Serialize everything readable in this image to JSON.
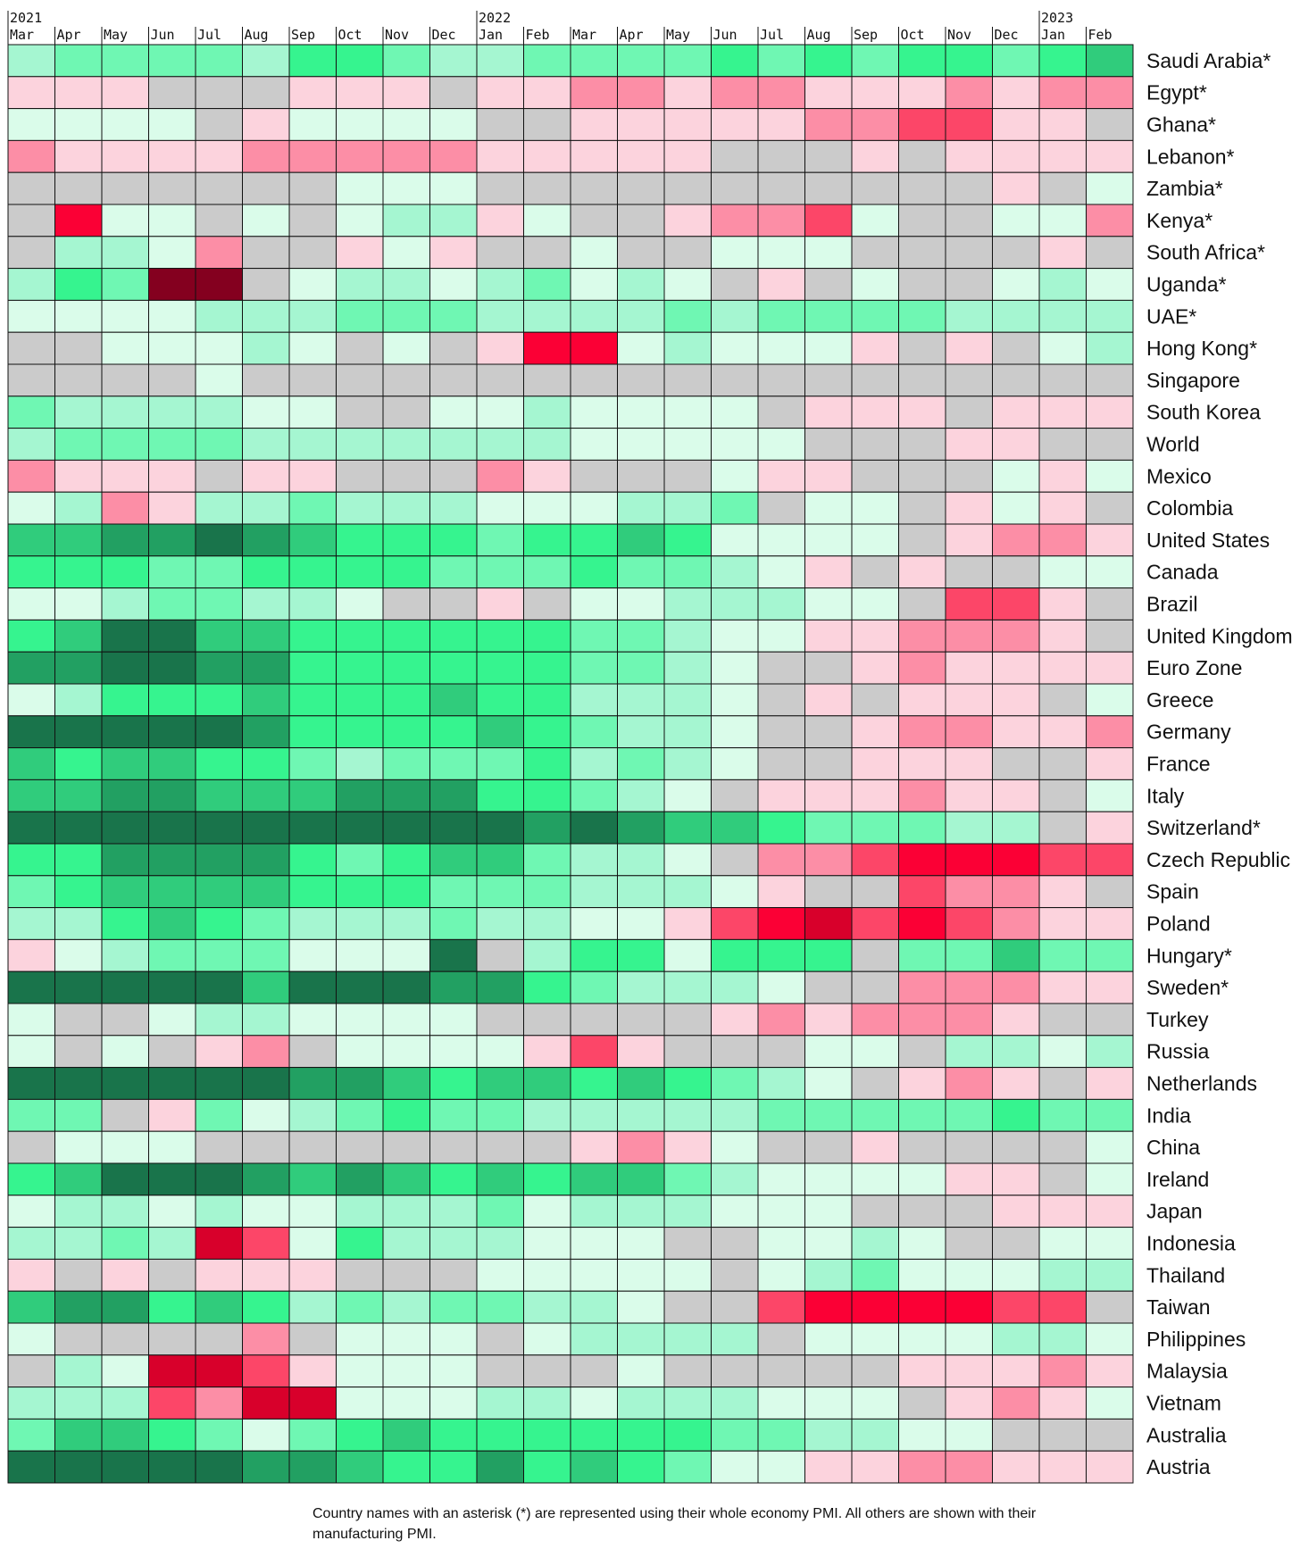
{
  "palette": {
    "g5": "#19744b",
    "g4": "#22a062",
    "g3": "#30cc7c",
    "g2": "#36f48f",
    "g1": "#6ff7b3",
    "g0": "#a5f6d1",
    "gl": "#dafcea",
    "n": "#cbcbcb",
    "pl": "#fcd3dd",
    "p1": "#fc8ea6",
    "r2": "#fc4668",
    "r3": "#fb0035",
    "r4": "#d8002b",
    "r5": "#84001f"
  },
  "chart_data": {
    "type": "heatmap",
    "years": [
      {
        "label": "2021",
        "col": 0
      },
      {
        "label": "2022",
        "col": 10
      },
      {
        "label": "2023",
        "col": 22
      }
    ],
    "months": [
      "Mar",
      "Apr",
      "May",
      "Jun",
      "Jul",
      "Aug",
      "Sep",
      "Oct",
      "Nov",
      "Dec",
      "Jan",
      "Feb",
      "Mar",
      "Apr",
      "May",
      "Jun",
      "Jul",
      "Aug",
      "Sep",
      "Oct",
      "Nov",
      "Dec",
      "Jan",
      "Feb"
    ],
    "rows": [
      {
        "name": "Saudi Arabia*",
        "cells": "g0 g1 g1 g1 g1 g0 g2 g2 g1 g0 g0 g1 g1 g1 g1 g2 g1 g2 g1 g2 g2 g1 g2 g3"
      },
      {
        "name": "Egypt*",
        "cells": "pl pl pl n n n pl pl pl n pl pl p1 p1 pl p1 p1 pl pl pl p1 pl p1 p1"
      },
      {
        "name": "Ghana*",
        "cells": "gl gl gl gl n pl gl gl gl gl n n pl pl pl pl pl p1 p1 r2 r2 pl pl n"
      },
      {
        "name": "Lebanon*",
        "cells": "p1 pl pl pl pl p1 p1 p1 p1 p1 pl pl pl pl pl n n n pl n pl pl pl pl"
      },
      {
        "name": "Zambia*",
        "cells": "n n n n n n n gl gl gl n n n n n n n n n n n pl n gl"
      },
      {
        "name": "Kenya*",
        "cells": "n r3 gl gl n gl n gl g0 g0 pl gl n n pl p1 p1 r2 gl n n gl gl p1"
      },
      {
        "name": "South Africa*",
        "cells": "n g0 g0 gl p1 n n pl gl pl n n gl n n gl gl gl n n n n pl n"
      },
      {
        "name": "Uganda*",
        "cells": "g0 g2 g1 r5 r5 n gl g0 g0 gl g0 g1 gl g0 gl n pl n gl n n gl g0 gl"
      },
      {
        "name": "UAE*",
        "cells": "gl gl gl gl g0 g0 g0 g1 g1 g1 g0 g0 g0 g0 g1 g0 g1 g1 g1 g1 g0 g0 g0 g0"
      },
      {
        "name": "Hong Kong*",
        "cells": "n n gl gl gl g0 gl n gl n pl r3 r3 gl g0 gl gl gl pl n pl n gl g0"
      },
      {
        "name": "Singapore",
        "cells": "n n n n gl n n n n n n n n n n n n n n n n n n n"
      },
      {
        "name": "South Korea",
        "cells": "g1 g0 g0 g0 g0 gl gl n n gl gl g0 gl gl gl gl n pl pl pl n pl pl pl"
      },
      {
        "name": "World",
        "cells": "g0 g1 g1 g1 g1 g0 g0 g0 g0 g0 g0 g0 gl gl gl gl gl n n n pl pl n n"
      },
      {
        "name": "Mexico",
        "cells": "p1 pl pl pl n pl pl n n n p1 pl n n n gl pl pl n n n gl pl gl"
      },
      {
        "name": "Colombia",
        "cells": "gl g0 p1 pl g0 g0 g1 g0 g0 g0 gl gl gl g0 g0 g1 n gl gl n pl gl pl n"
      },
      {
        "name": "United States",
        "cells": "g3 g3 g4 g4 g5 g4 g3 g2 g2 g2 g1 g2 g2 g3 g2 gl gl gl gl n pl p1 p1 pl"
      },
      {
        "name": "Canada",
        "cells": "g2 g2 g2 g1 g1 g2 g2 g2 g2 g1 g1 g1 g2 g1 g1 g0 gl pl n pl n n gl gl"
      },
      {
        "name": "Brazil",
        "cells": "gl gl g0 g1 g1 g0 g0 gl n n pl n gl gl g0 g0 g0 gl gl n r2 r2 pl n"
      },
      {
        "name": "United Kingdom",
        "cells": "g2 g3 g5 g5 g3 g3 g2 g2 g2 g2 g2 g2 g1 g1 g0 gl gl pl pl p1 p1 p1 pl n"
      },
      {
        "name": "Euro Zone",
        "cells": "g4 g4 g5 g5 g4 g4 g2 g2 g2 g2 g2 g2 g1 g1 g0 gl n n pl p1 pl pl pl pl"
      },
      {
        "name": "Greece",
        "cells": "gl g0 g2 g2 g2 g3 g2 g2 g2 g3 g2 g2 g0 g0 g0 gl n pl n pl pl pl n gl"
      },
      {
        "name": "Germany",
        "cells": "g5 g5 g5 g5 g5 g4 g2 g2 g2 g2 g3 g2 g1 g0 g0 gl n n pl p1 p1 pl pl p1"
      },
      {
        "name": "France",
        "cells": "g3 g2 g3 g3 g2 g2 g1 g0 g1 g1 g1 g2 g0 g1 g0 gl n n pl pl pl n n pl"
      },
      {
        "name": "Italy",
        "cells": "g3 g3 g4 g4 g3 g3 g3 g4 g4 g4 g2 g2 g1 g0 gl n pl pl pl p1 pl pl n gl"
      },
      {
        "name": "Switzerland*",
        "cells": "g5 g5 g5 g5 g5 g5 g5 g5 g5 g5 g5 g4 g5 g4 g3 g3 g2 g1 g1 g1 g0 g0 n pl"
      },
      {
        "name": "Czech Republic",
        "cells": "g2 g2 g4 g4 g4 g4 g2 g1 g2 g3 g3 g1 g0 g0 gl n p1 p1 r2 r3 r3 r3 r2 r2"
      },
      {
        "name": "Spain",
        "cells": "g1 g2 g3 g3 g3 g3 g2 g2 g2 g1 g1 g1 g0 g0 g0 gl pl n n r2 p1 p1 pl n"
      },
      {
        "name": "Poland",
        "cells": "g0 g0 g2 g3 g2 g1 g0 g0 g0 g1 g0 g0 gl gl pl r2 r3 r4 r2 r3 r2 p1 pl pl"
      },
      {
        "name": "Hungary*",
        "cells": "pl gl g0 g1 g1 g1 gl gl gl g5 n g0 g2 g2 gl g2 g2 g2 n g1 g1 g3 g1 g1"
      },
      {
        "name": "Sweden*",
        "cells": "g5 g5 g5 g5 g5 g3 g5 g5 g5 g4 g4 g2 g1 g0 g0 g0 gl n n p1 p1 p1 pl pl"
      },
      {
        "name": "Turkey",
        "cells": "gl n n gl g0 g0 gl gl gl gl n n n n n pl p1 pl p1 p1 p1 pl n n"
      },
      {
        "name": "Russia",
        "cells": "gl n gl n pl p1 n gl gl gl gl pl r2 pl n n n gl gl n g0 g0 gl g0"
      },
      {
        "name": "Netherlands",
        "cells": "g5 g5 g5 g5 g5 g5 g4 g4 g3 g2 g3 g3 g2 g3 g2 g1 g0 gl n pl p1 pl n pl"
      },
      {
        "name": "India",
        "cells": "g1 g1 n pl g1 gl g0 g1 g2 g1 g1 g0 g0 g0 g0 g0 g1 g1 g1 g1 g1 g2 g1 g1"
      },
      {
        "name": "China",
        "cells": "n gl gl gl n n n n n n n n pl p1 pl gl n n pl n n n n gl"
      },
      {
        "name": "Ireland",
        "cells": "g2 g3 g5 g5 g5 g4 g3 g4 g3 g2 g3 g2 g3 g3 g1 g0 gl gl gl gl pl pl n gl"
      },
      {
        "name": "Japan",
        "cells": "gl g0 g0 gl g0 gl gl g0 g0 g0 g1 gl g0 g0 g0 gl gl gl n n n pl pl pl"
      },
      {
        "name": "Indonesia",
        "cells": "g0 g0 g1 g0 r4 r2 gl g2 g0 g0 g0 gl gl gl n n gl gl g0 gl n n gl gl"
      },
      {
        "name": "Thailand",
        "cells": "pl n pl n pl pl pl n n n gl gl gl gl gl n gl g0 g1 gl gl gl g0 g0"
      },
      {
        "name": "Taiwan",
        "cells": "g3 g4 g4 g2 g3 g2 g0 g1 g0 g1 g1 g0 g0 gl n n r2 r3 r3 r3 r3 r2 r2 n"
      },
      {
        "name": "Philippines",
        "cells": "gl n n n n p1 n gl gl gl n gl g0 g0 g0 g0 n gl gl gl gl g0 g0 gl"
      },
      {
        "name": "Malaysia",
        "cells": "n g0 gl r4 r4 r2 pl gl gl gl n n n gl n n n n n pl pl pl p1 pl"
      },
      {
        "name": "Vietnam",
        "cells": "g0 g0 g0 r2 p1 r4 r4 gl gl gl g0 g0 gl g0 g0 g0 gl gl gl n pl p1 pl gl"
      },
      {
        "name": "Australia",
        "cells": "g1 g3 g3 g2 g1 gl g1 g2 g3 g2 g2 g2 g2 g2 g2 g1 g1 g0 g0 gl gl n n n"
      },
      {
        "name": "Austria",
        "cells": "g5 g5 g5 g5 g5 g4 g4 g3 g2 g2 g4 g2 g3 g2 g1 gl gl pl pl p1 p1 pl pl pl"
      }
    ]
  },
  "footnote": "Country names with an asterisk (*) are represented using their whole economy PMI. All others are shown with their manufacturing PMI."
}
